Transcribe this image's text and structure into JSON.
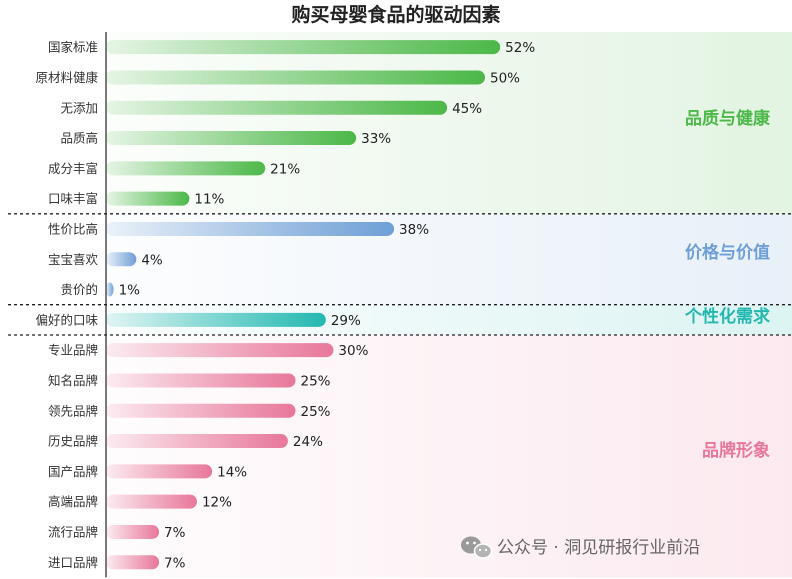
{
  "chart_data": {
    "type": "bar",
    "orientation": "horizontal",
    "title": "购买母婴食品的驱动因素",
    "xlabel": "",
    "ylabel": "",
    "xlim": [
      0,
      60
    ],
    "value_suffix": "%",
    "grid": false,
    "groups": [
      {
        "name": "品质与健康",
        "color": "#4cb848",
        "items": [
          {
            "label": "国家标准",
            "value": 52
          },
          {
            "label": "原材料健康",
            "value": 50
          },
          {
            "label": "无添加",
            "value": 45
          },
          {
            "label": "品质高",
            "value": 33
          },
          {
            "label": "成分丰富",
            "value": 21
          },
          {
            "label": "口味丰富",
            "value": 11
          }
        ]
      },
      {
        "name": "价格与价值",
        "color": "#6e9fd6",
        "items": [
          {
            "label": "性价比高",
            "value": 38
          },
          {
            "label": "宝宝喜欢",
            "value": 4
          },
          {
            "label": "贵价的",
            "value": 1
          }
        ]
      },
      {
        "name": "个性化需求",
        "color": "#22b8b0",
        "items": [
          {
            "label": "偏好的口味",
            "value": 29
          }
        ]
      },
      {
        "name": "品牌形象",
        "color": "#e8779a",
        "items": [
          {
            "label": "专业品牌",
            "value": 30
          },
          {
            "label": "知名品牌",
            "value": 25
          },
          {
            "label": "领先品牌",
            "value": 25
          },
          {
            "label": "历史品牌",
            "value": 24
          },
          {
            "label": "国产品牌",
            "value": 14
          },
          {
            "label": "高端品牌",
            "value": 12
          },
          {
            "label": "流行品牌",
            "value": 7
          },
          {
            "label": "进口品牌",
            "value": 7
          }
        ]
      }
    ]
  },
  "watermark": {
    "icon": "wechat-icon",
    "text": "公众号 · 洞见研报行业前沿"
  }
}
